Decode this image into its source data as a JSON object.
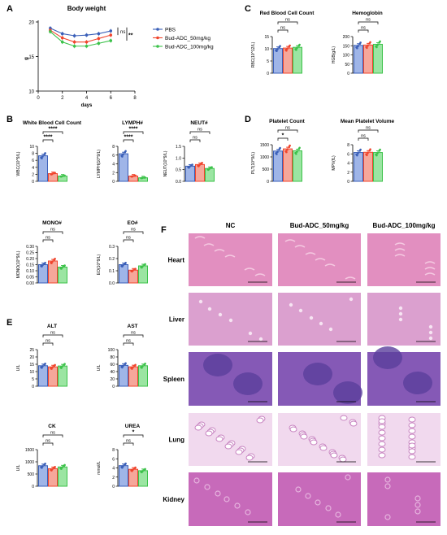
{
  "colors": {
    "pbs": "#3a5fb8",
    "adc50": "#f0452d",
    "adc100": "#3cc24a"
  },
  "panels": [
    {
      "letter": "A",
      "title": "Body weight",
      "ylabel": "g",
      "xlabel": "days",
      "yticks": [
        "10",
        "15",
        "20"
      ],
      "xticks": [
        "0",
        "2",
        "4",
        "6",
        "8"
      ],
      "sig": [
        "ns",
        "**"
      ]
    },
    {
      "letter": "B"
    },
    {
      "letter": "C"
    },
    {
      "letter": "D"
    },
    {
      "letter": "E"
    },
    {
      "letter": "F"
    }
  ],
  "legend": [
    "PBS",
    "Bud-ADC_50mg/kg",
    "Bud-ADC_100mg/kg"
  ],
  "chart_data": [
    {
      "type": "line",
      "title": "Body weight",
      "xlabel": "days",
      "ylabel": "g",
      "ylim": [
        10,
        20
      ],
      "xlim": [
        0,
        8
      ],
      "x": [
        1,
        2,
        3,
        4,
        5,
        6
      ],
      "series": [
        {
          "name": "PBS",
          "values": [
            19.1,
            18.3,
            18.0,
            18.1,
            18.3,
            18.7
          ]
        },
        {
          "name": "Bud-ADC_50mg/kg",
          "values": [
            18.8,
            17.7,
            17.1,
            17.1,
            17.6,
            18.1
          ]
        },
        {
          "name": "Bud-ADC_100mg/kg",
          "values": [
            18.6,
            17.1,
            16.5,
            16.5,
            16.9,
            17.3
          ]
        }
      ]
    },
    {
      "type": "bar",
      "title": "Red Blood Cell Count",
      "ylabel": "RBC(10^12/L)",
      "ylim": [
        0,
        15
      ],
      "yticks": [
        "0",
        "5",
        "10",
        "15"
      ],
      "values": [
        10.1,
        10.3,
        10.6
      ],
      "sig": [
        "ns",
        "ns"
      ]
    },
    {
      "type": "bar",
      "title": "Hemoglobin",
      "ylabel": "HGB(g/L)",
      "ylim": [
        0,
        200
      ],
      "yticks": [
        "0",
        "50",
        "100",
        "150",
        "200"
      ],
      "values": [
        152,
        154,
        158
      ],
      "sig": [
        "ns",
        "ns"
      ]
    },
    {
      "type": "bar",
      "title": "White Blood Cell Count",
      "ylabel": "WBC(10^9/L)",
      "ylim": [
        0,
        10
      ],
      "yticks": [
        "0",
        "2",
        "4",
        "6",
        "8",
        "10"
      ],
      "values": [
        7.3,
        2.2,
        1.5
      ],
      "sig": [
        "****",
        "****"
      ]
    },
    {
      "type": "bar",
      "title": "LYMPH#",
      "ylabel": "LYMPH(10^9/L)",
      "ylim": [
        0,
        8
      ],
      "yticks": [
        "0",
        "2",
        "4",
        "6",
        "8"
      ],
      "values": [
        6.3,
        1.2,
        0.8
      ],
      "sig": [
        "****",
        "****"
      ]
    },
    {
      "type": "bar",
      "title": "NEUT#",
      "ylabel": "NEUT(10^9/L)",
      "ylim": [
        0,
        1.5
      ],
      "yticks": [
        "0.0",
        "0.5",
        "1.0",
        "1.5"
      ],
      "values": [
        0.65,
        0.72,
        0.55
      ],
      "sig": [
        "ns",
        "ns"
      ]
    },
    {
      "type": "bar",
      "title": "Platelet Count",
      "ylabel": "PLT(10^9/L)",
      "ylim": [
        0,
        1500
      ],
      "yticks": [
        "0",
        "500",
        "1000",
        "1500"
      ],
      "values": [
        1240,
        1330,
        1250
      ],
      "sig": [
        "*",
        "ns"
      ]
    },
    {
      "type": "bar",
      "title": "Mean Platelet Volume",
      "ylabel": "MPV(fL)",
      "ylim": [
        0,
        8
      ],
      "yticks": [
        "0",
        "2",
        "4",
        "6",
        "8"
      ],
      "values": [
        6.3,
        6.35,
        6.3
      ],
      "sig": [
        "ns",
        "ns"
      ]
    },
    {
      "type": "bar",
      "title": "MONO#",
      "ylabel": "MONO(10^9/L)",
      "ylim": [
        0,
        0.3
      ],
      "yticks": [
        "0.00",
        "0.05",
        "0.10",
        "0.15",
        "0.20",
        "0.25",
        "0.30"
      ],
      "values": [
        0.15,
        0.18,
        0.13
      ],
      "sig": [
        "ns",
        "ns"
      ]
    },
    {
      "type": "bar",
      "title": "EO#",
      "ylabel": "EO(10^9/L)",
      "ylim": [
        0,
        0.3
      ],
      "yticks": [
        "0.0",
        "0.1",
        "0.2",
        "0.3"
      ],
      "values": [
        0.15,
        0.105,
        0.14
      ],
      "sig": [
        "ns",
        "ns"
      ]
    },
    {
      "type": "bar",
      "title": "ALT",
      "ylabel": "U/L",
      "ylim": [
        0,
        25
      ],
      "yticks": [
        "0",
        "5",
        "10",
        "15",
        "20",
        "25"
      ],
      "values": [
        14,
        13.2,
        13.8
      ],
      "sig": [
        "ns",
        "ns"
      ]
    },
    {
      "type": "bar",
      "title": "AST",
      "ylabel": "U/L",
      "ylim": [
        0,
        100
      ],
      "yticks": [
        "0",
        "20",
        "40",
        "60",
        "80",
        "100"
      ],
      "values": [
        57,
        53,
        56
      ],
      "sig": [
        "ns",
        "ns"
      ]
    },
    {
      "type": "bar",
      "title": "CK",
      "ylabel": "U/L",
      "ylim": [
        0,
        1500
      ],
      "yticks": [
        "0",
        "500",
        "1000",
        "1500"
      ],
      "values": [
        840,
        720,
        790
      ],
      "sig": [
        "ns",
        "ns"
      ]
    },
    {
      "type": "bar",
      "title": "UREA",
      "ylabel": "mmol/L",
      "ylim": [
        0,
        8
      ],
      "yticks": [
        "0",
        "2",
        "4",
        "6",
        "8"
      ],
      "values": [
        4.5,
        3.7,
        3.4
      ],
      "sig": [
        "ns",
        "*"
      ]
    }
  ],
  "histology": {
    "columns": [
      "NC",
      "Bud-ADC_50mg/kg",
      "Bud-ADC_100mg/kg"
    ],
    "rows": [
      "Heart",
      "Liver",
      "Spleen",
      "Lung",
      "Kidney"
    ]
  }
}
